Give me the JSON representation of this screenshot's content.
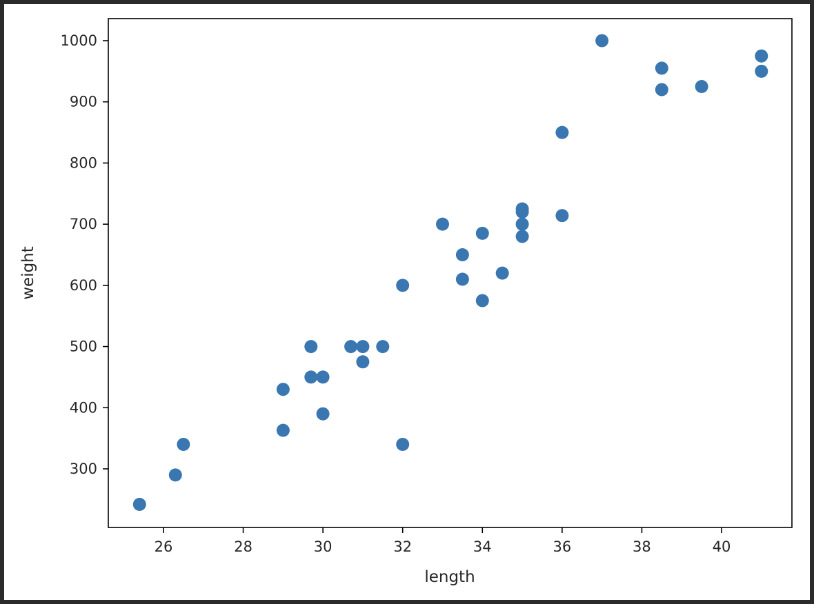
{
  "chart_data": {
    "type": "scatter",
    "title": "",
    "xlabel": "length",
    "ylabel": "weight",
    "xlim": [
      24.6,
      41.8
    ],
    "ylim": [
      205,
      1040
    ],
    "x_ticks": [
      26,
      28,
      30,
      32,
      34,
      36,
      38,
      40
    ],
    "y_ticks": [
      300,
      400,
      500,
      600,
      700,
      800,
      900,
      1000
    ],
    "grid": false,
    "legend": "none",
    "marker_color": "#3a76b0",
    "points": [
      {
        "x": 25.4,
        "y": 242
      },
      {
        "x": 26.3,
        "y": 290
      },
      {
        "x": 26.5,
        "y": 340
      },
      {
        "x": 29.0,
        "y": 363
      },
      {
        "x": 29.0,
        "y": 430
      },
      {
        "x": 29.7,
        "y": 450
      },
      {
        "x": 29.7,
        "y": 500
      },
      {
        "x": 30.0,
        "y": 390
      },
      {
        "x": 30.0,
        "y": 450
      },
      {
        "x": 30.7,
        "y": 500
      },
      {
        "x": 31.0,
        "y": 475
      },
      {
        "x": 31.0,
        "y": 500
      },
      {
        "x": 31.5,
        "y": 500
      },
      {
        "x": 32.0,
        "y": 340
      },
      {
        "x": 32.0,
        "y": 600
      },
      {
        "x": 33.0,
        "y": 700
      },
      {
        "x": 33.5,
        "y": 610
      },
      {
        "x": 33.5,
        "y": 650
      },
      {
        "x": 34.0,
        "y": 575
      },
      {
        "x": 34.0,
        "y": 685
      },
      {
        "x": 34.5,
        "y": 620
      },
      {
        "x": 35.0,
        "y": 680
      },
      {
        "x": 35.0,
        "y": 700
      },
      {
        "x": 35.0,
        "y": 725
      },
      {
        "x": 35.0,
        "y": 720
      },
      {
        "x": 36.0,
        "y": 714
      },
      {
        "x": 36.0,
        "y": 850
      },
      {
        "x": 37.0,
        "y": 1000
      },
      {
        "x": 38.5,
        "y": 920
      },
      {
        "x": 38.5,
        "y": 955
      },
      {
        "x": 39.5,
        "y": 925
      },
      {
        "x": 41.0,
        "y": 975
      },
      {
        "x": 41.0,
        "y": 950
      }
    ]
  }
}
